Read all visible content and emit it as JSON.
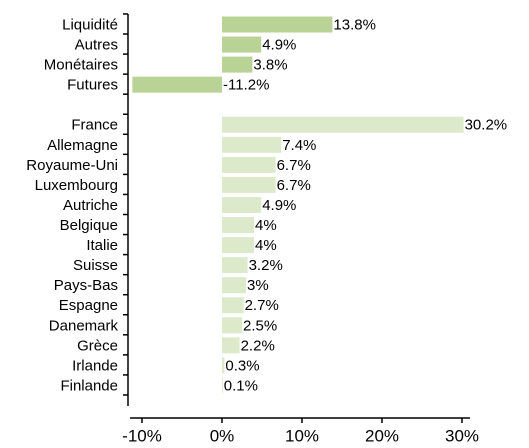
{
  "chart_data": {
    "type": "hbar",
    "categories": [
      "Liquidité",
      "Autres",
      "Monétaires",
      "Futures",
      null,
      "France",
      "Allemagne",
      "Royaume-Uni",
      "Luxembourg",
      "Autriche",
      "Belgique",
      "Italie",
      "Suisse",
      "Pays-Bas",
      "Espagne",
      "Danemark",
      "Grèce",
      "Irlande",
      "Finlande"
    ],
    "values": [
      13.8,
      4.9,
      3.8,
      -11.2,
      null,
      30.2,
      7.4,
      6.7,
      6.7,
      4.9,
      4,
      4,
      3.2,
      3,
      2.7,
      2.5,
      2.2,
      0.3,
      0.1
    ],
    "value_labels": [
      "13.8%",
      "4.9%",
      "3.8%",
      "-11.2%",
      null,
      "30.2%",
      "7.4%",
      "6.7%",
      "6.7%",
      "4.9%",
      "4%",
      "4%",
      "3.2%",
      "3%",
      "2.7%",
      "2.5%",
      "2.2%",
      "0.3%",
      "0.1%"
    ],
    "colors": [
      "#b9d295",
      "#b9d295",
      "#b9d295",
      "#b9d295",
      null,
      "#dde9cb",
      "#dde9cb",
      "#dde9cb",
      "#dde9cb",
      "#dde9cb",
      "#dde9cb",
      "#dde9cb",
      "#dde9cb",
      "#dde9cb",
      "#dde9cb",
      "#dde9cb",
      "#dde9cb",
      "#dde9cb",
      "#dde9cb"
    ],
    "xlim": [
      -11.5,
      31
    ],
    "xticks": [
      {
        "value": -10,
        "label": "-10%"
      },
      {
        "value": 0,
        "label": "0%"
      },
      {
        "value": 10,
        "label": "10%"
      },
      {
        "value": 20,
        "label": "20%"
      },
      {
        "value": 30,
        "label": "30%"
      }
    ]
  }
}
